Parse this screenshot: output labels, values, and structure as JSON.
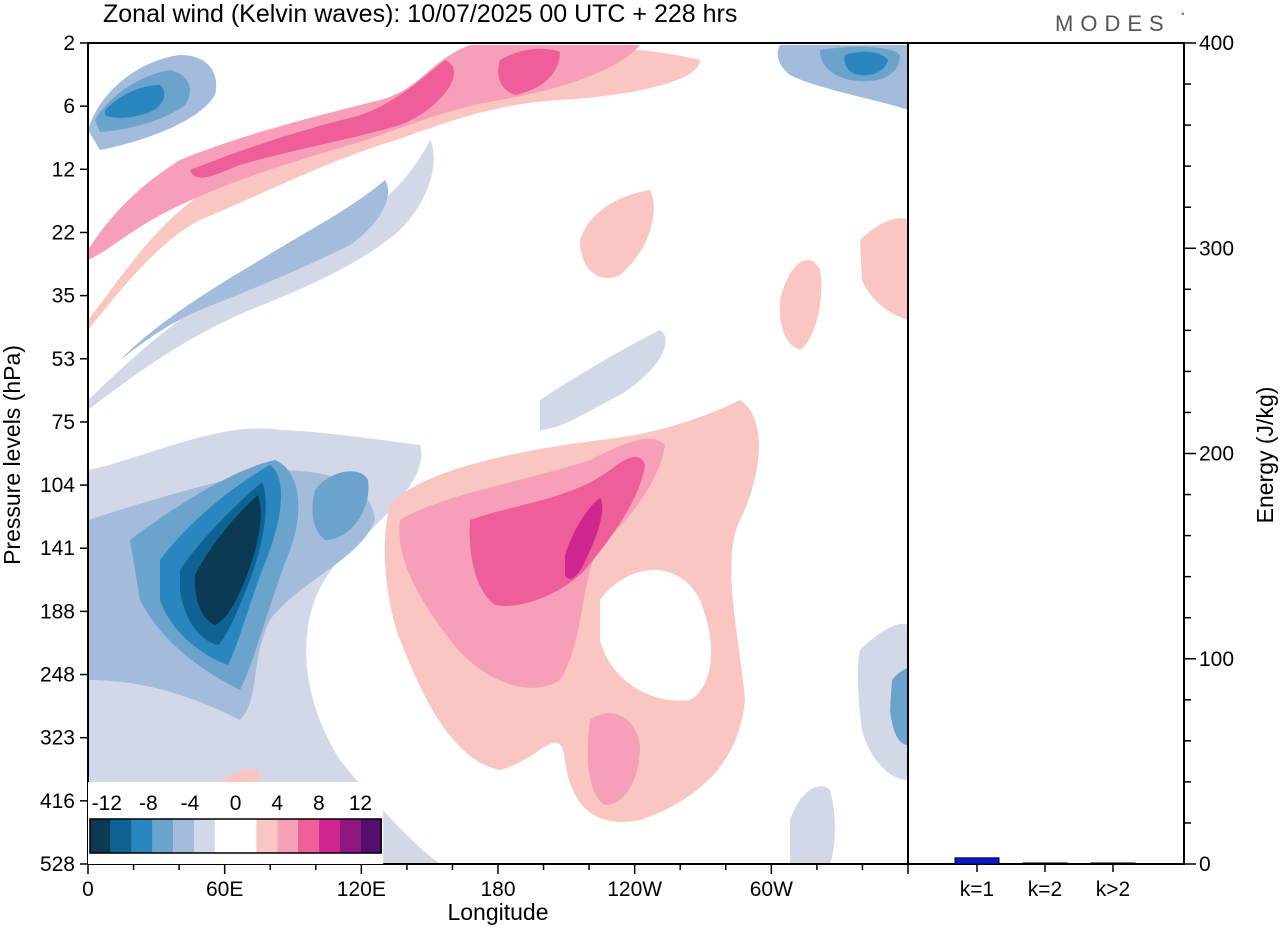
{
  "title": "Zonal wind (Kelvin waves):  10/07/2025  00 UTC  + 228 hrs",
  "brand": "MODES",
  "chart_data": [
    {
      "type": "heatmap",
      "title": "Zonal wind (Kelvin waves):  10/07/2025  00 UTC  + 228 hrs",
      "xlabel": "Longitude",
      "ylabel": "Pressure levels (hPa)",
      "x_ticks": [
        "0",
        "60E",
        "120E",
        "180",
        "120W",
        "60W"
      ],
      "x_tick_values": [
        0,
        60,
        120,
        180,
        240,
        300
      ],
      "xlim": [
        0,
        360
      ],
      "y_ticks": [
        "2",
        "6",
        "12",
        "22",
        "35",
        "53",
        "75",
        "104",
        "141",
        "188",
        "248",
        "323",
        "416",
        "528"
      ],
      "y_levels_hpa": [
        2,
        6,
        12,
        22,
        35,
        53,
        75,
        104,
        141,
        188,
        248,
        323,
        416,
        528
      ],
      "colorbar": {
        "labels": [
          "-12",
          "-8",
          "-4",
          "0",
          "4",
          "8",
          "12"
        ],
        "colors": [
          "#0c3954",
          "#0d6494",
          "#2a86be",
          "#6aa3cc",
          "#a3bcdb",
          "#d3d8e8",
          "#ffffff",
          "#ffffff",
          "#f9c6c2",
          "#f79fb8",
          "#ee5f99",
          "#d02690",
          "#8f157f",
          "#55106f"
        ]
      },
      "features": [
        {
          "sign": "negative",
          "peak": -14,
          "lon_center": 63,
          "lev_center": "141"
        },
        {
          "sign": "positive",
          "peak": 10,
          "lon_center": 210,
          "lev_center": "141"
        },
        {
          "sign": "negative",
          "peak": -10,
          "lon_center": 15,
          "lev_center": "6"
        },
        {
          "sign": "positive",
          "peak": 8,
          "lon_center": 110,
          "lev_center": "6"
        },
        {
          "sign": "negative",
          "peak": -10,
          "lon_center": 345,
          "lev_center": "2"
        }
      ]
    },
    {
      "type": "bar",
      "ylabel": "Energy (J/kg)",
      "categories": [
        "k=1",
        "k=2",
        "k>2"
      ],
      "values": [
        3,
        0.5,
        0.5
      ],
      "ylim": [
        0,
        400
      ],
      "y_ticks": [
        "0",
        "100",
        "200",
        "300",
        "400"
      ],
      "y_tick_values": [
        0,
        100,
        200,
        300,
        400
      ],
      "colors": [
        "#0a17d6",
        "#0a17d6",
        "#0a17d6"
      ]
    }
  ]
}
